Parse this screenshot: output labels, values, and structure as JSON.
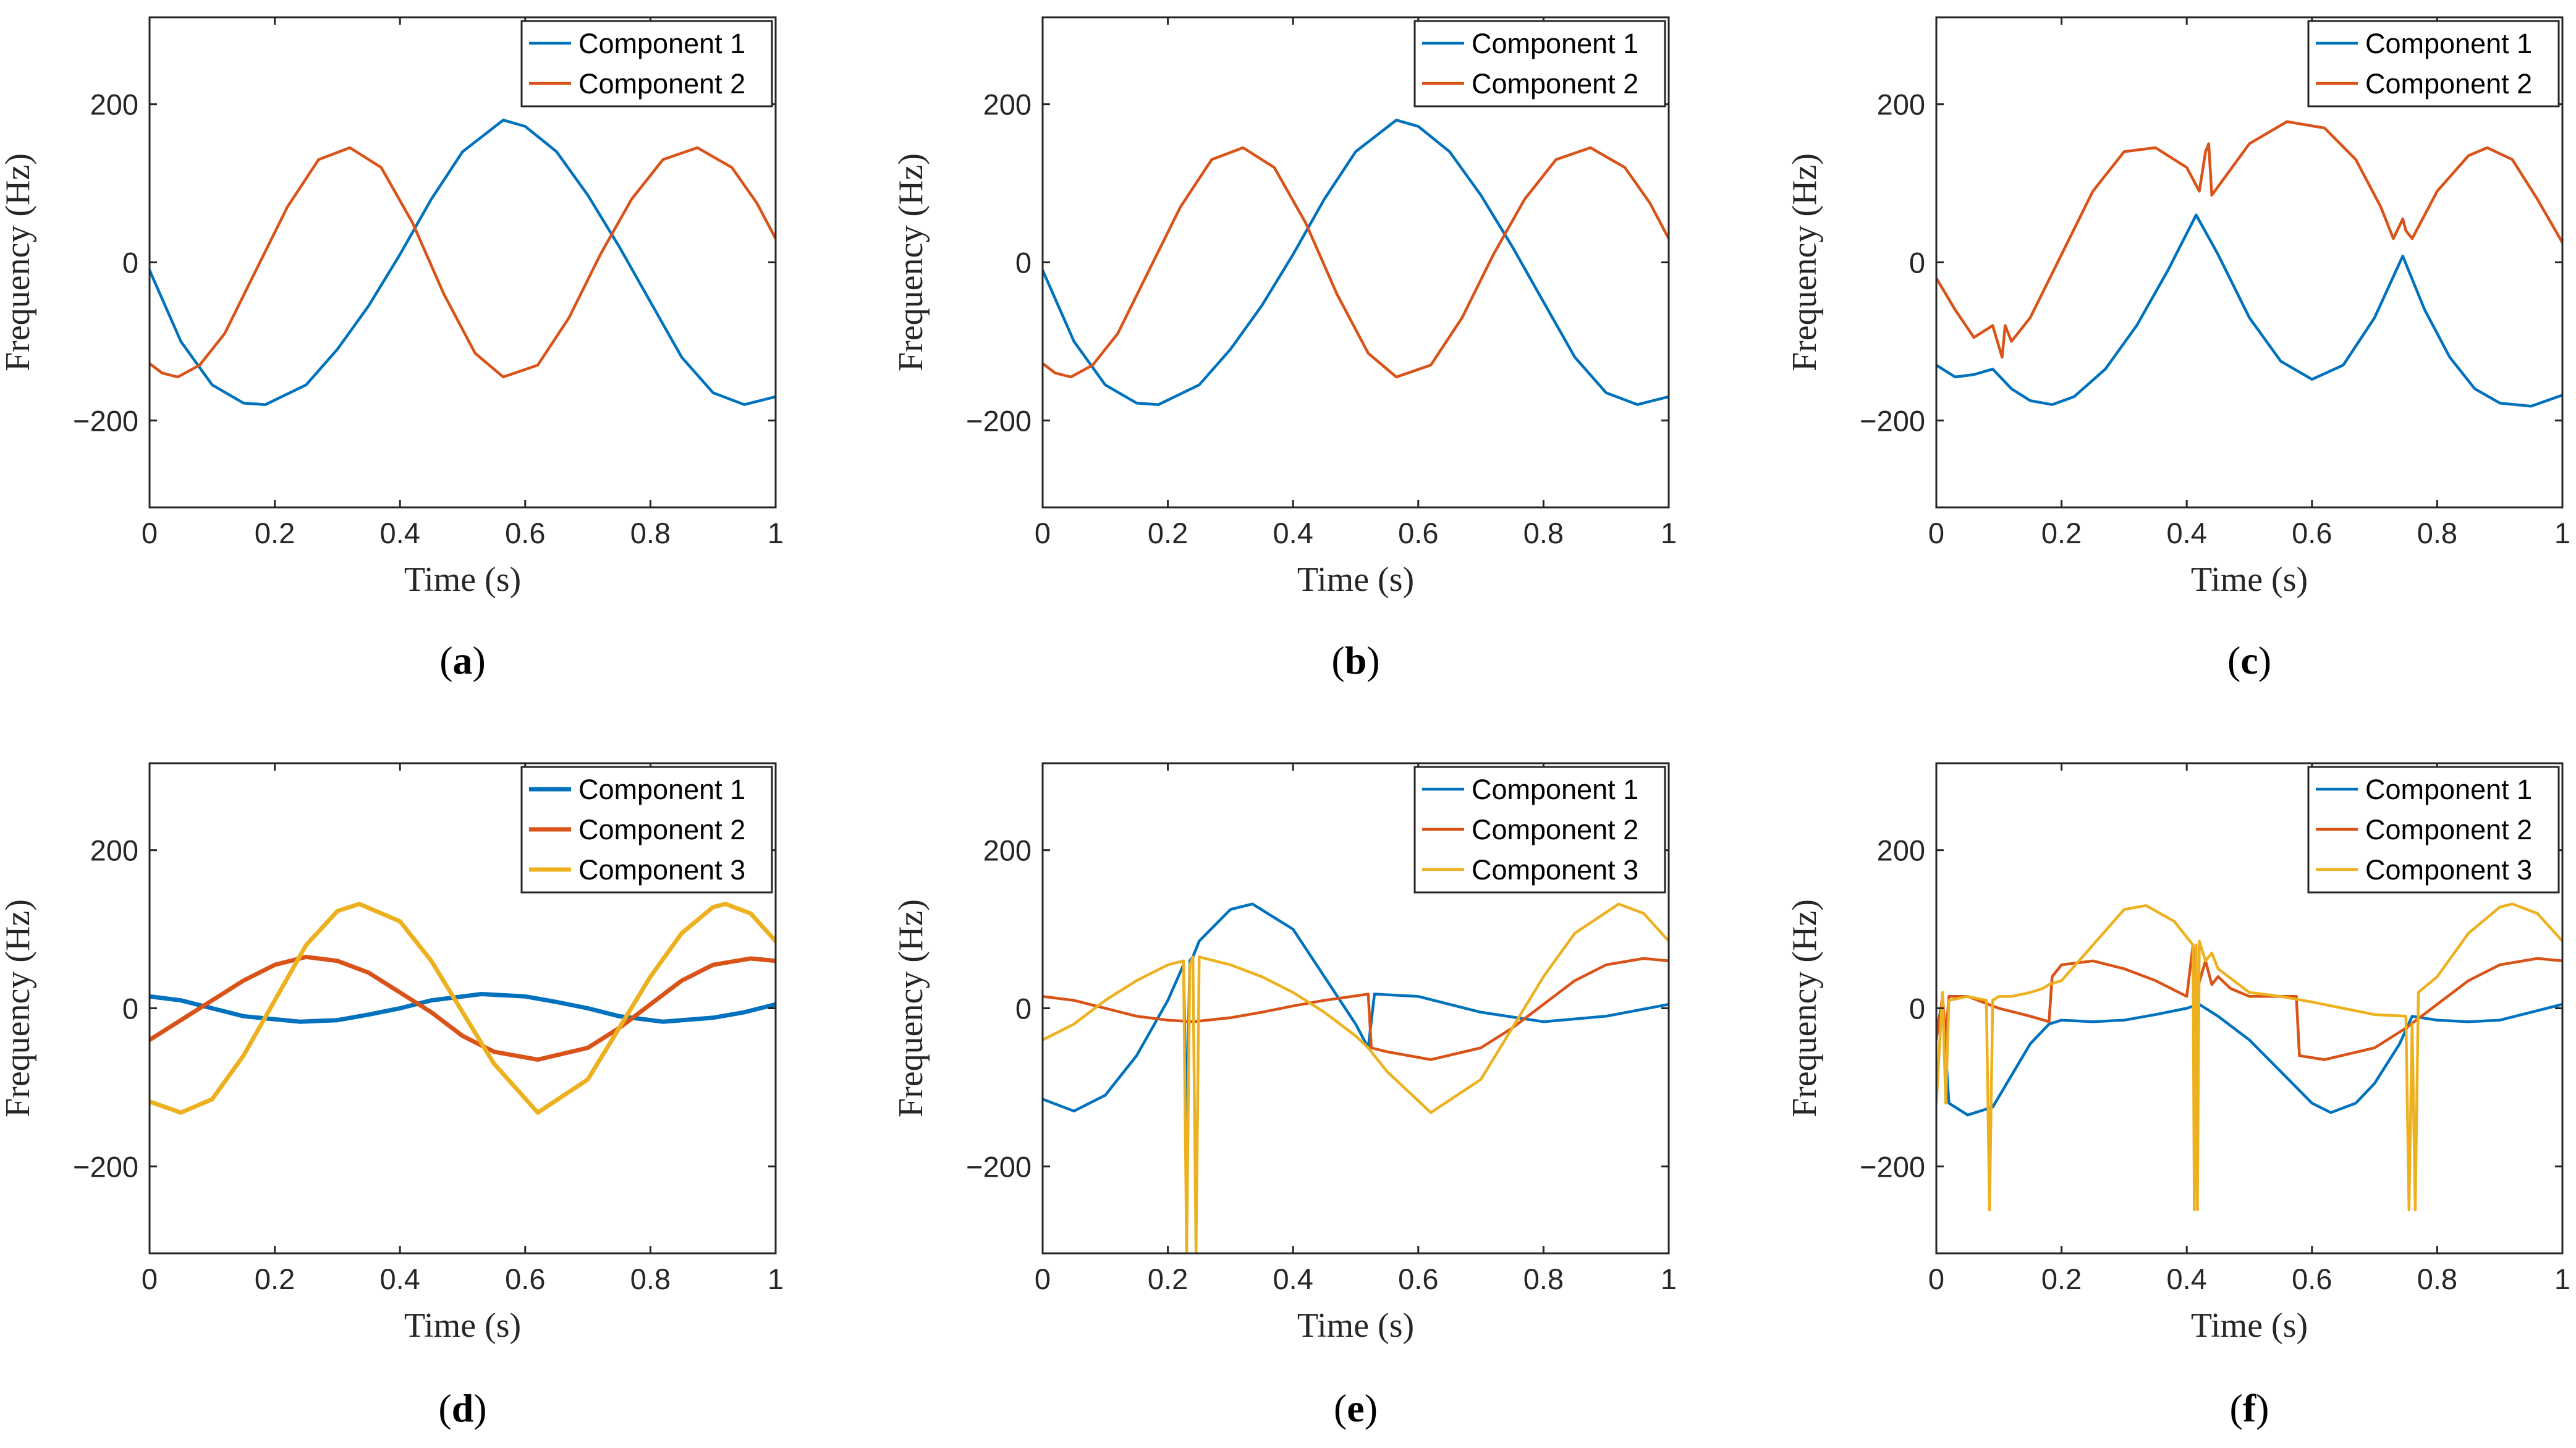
{
  "colors": {
    "c1": "#0072BD",
    "c2": "#D95319",
    "c3": "#EDB120",
    "axis": "#262626"
  },
  "chart_data": [
    {
      "type": "line",
      "caption": "a",
      "xlabel": "Time (s)",
      "ylabel": "Frequency (Hz)",
      "xlim": [
        0,
        1
      ],
      "ylim": [
        -310,
        310
      ],
      "xticks": [
        0,
        0.2,
        0.4,
        0.6,
        0.8,
        1
      ],
      "xtick_labels": [
        "0",
        "0.2",
        "0.4",
        "0.6",
        "0.8",
        "1"
      ],
      "yticks": [
        -200,
        0,
        200
      ],
      "ytick_labels": [
        "−200",
        "0",
        "200"
      ],
      "legend_position": "top-right",
      "series": [
        {
          "name": "Component 1",
          "color": "#0072BD",
          "x": [
            0,
            0.05,
            0.1,
            0.15,
            0.185,
            0.25,
            0.3,
            0.35,
            0.4,
            0.45,
            0.5,
            0.565,
            0.6,
            0.65,
            0.7,
            0.75,
            0.8,
            0.85,
            0.9,
            0.95,
            1
          ],
          "y": [
            -10,
            -100,
            -155,
            -178,
            -180,
            -155,
            -110,
            -55,
            10,
            80,
            140,
            180,
            172,
            140,
            85,
            20,
            -50,
            -120,
            -165,
            -180,
            -170
          ]
        },
        {
          "name": "Component 2",
          "color": "#D95319",
          "x": [
            0,
            0.02,
            0.045,
            0.08,
            0.12,
            0.17,
            0.22,
            0.27,
            0.32,
            0.37,
            0.42,
            0.47,
            0.52,
            0.565,
            0.62,
            0.67,
            0.72,
            0.77,
            0.82,
            0.875,
            0.93,
            0.97,
            1
          ],
          "y": [
            -128,
            -140,
            -145,
            -130,
            -90,
            -10,
            70,
            130,
            145,
            120,
            50,
            -40,
            -115,
            -145,
            -130,
            -70,
            10,
            80,
            130,
            145,
            120,
            75,
            30
          ]
        }
      ]
    },
    {
      "type": "line",
      "caption": "b",
      "xlabel": "Time (s)",
      "ylabel": "Frequency (Hz)",
      "xlim": [
        0,
        1
      ],
      "ylim": [
        -310,
        310
      ],
      "xticks": [
        0,
        0.2,
        0.4,
        0.6,
        0.8,
        1
      ],
      "xtick_labels": [
        "0",
        "0.2",
        "0.4",
        "0.6",
        "0.8",
        "1"
      ],
      "yticks": [
        -200,
        0,
        200
      ],
      "ytick_labels": [
        "−200",
        "0",
        "200"
      ],
      "legend_position": "top-right",
      "series": [
        {
          "name": "Component 1",
          "color": "#0072BD",
          "x": [
            0,
            0.05,
            0.1,
            0.15,
            0.185,
            0.25,
            0.3,
            0.35,
            0.4,
            0.45,
            0.5,
            0.565,
            0.6,
            0.65,
            0.7,
            0.75,
            0.8,
            0.85,
            0.9,
            0.95,
            1
          ],
          "y": [
            -10,
            -100,
            -155,
            -178,
            -180,
            -155,
            -110,
            -55,
            10,
            80,
            140,
            180,
            172,
            140,
            85,
            20,
            -50,
            -120,
            -165,
            -180,
            -170
          ]
        },
        {
          "name": "Component 2",
          "color": "#D95319",
          "x": [
            0,
            0.02,
            0.045,
            0.08,
            0.12,
            0.17,
            0.22,
            0.27,
            0.32,
            0.37,
            0.42,
            0.47,
            0.52,
            0.565,
            0.62,
            0.67,
            0.72,
            0.77,
            0.82,
            0.875,
            0.93,
            0.97,
            1
          ],
          "y": [
            -128,
            -140,
            -145,
            -130,
            -90,
            -10,
            70,
            130,
            145,
            120,
            50,
            -40,
            -115,
            -145,
            -130,
            -70,
            10,
            80,
            130,
            145,
            120,
            75,
            30
          ]
        }
      ]
    },
    {
      "type": "line",
      "caption": "c",
      "xlabel": "Time (s)",
      "ylabel": "Frequency (Hz)",
      "xlim": [
        0,
        1
      ],
      "ylim": [
        -310,
        310
      ],
      "xticks": [
        0,
        0.2,
        0.4,
        0.6,
        0.8,
        1
      ],
      "xtick_labels": [
        "0",
        "0.2",
        "0.4",
        "0.6",
        "0.8",
        "1"
      ],
      "yticks": [
        -200,
        0,
        200
      ],
      "ytick_labels": [
        "−200",
        "0",
        "200"
      ],
      "legend_position": "top-right",
      "series": [
        {
          "name": "Component 1",
          "color": "#0072BD",
          "x": [
            0,
            0.03,
            0.06,
            0.09,
            0.12,
            0.15,
            0.185,
            0.22,
            0.27,
            0.32,
            0.37,
            0.415,
            0.45,
            0.5,
            0.55,
            0.6,
            0.65,
            0.7,
            0.745,
            0.78,
            0.82,
            0.86,
            0.9,
            0.95,
            1
          ],
          "y": [
            -130,
            -145,
            -142,
            -135,
            -160,
            -175,
            -180,
            -170,
            -135,
            -80,
            -10,
            60,
            10,
            -70,
            -125,
            -148,
            -130,
            -70,
            8,
            -60,
            -120,
            -160,
            -178,
            -182,
            -168
          ]
        },
        {
          "name": "Component 2",
          "color": "#D95319",
          "x": [
            0,
            0.03,
            0.06,
            0.09,
            0.105,
            0.11,
            0.12,
            0.15,
            0.2,
            0.25,
            0.3,
            0.35,
            0.4,
            0.42,
            0.43,
            0.435,
            0.44,
            0.5,
            0.56,
            0.62,
            0.67,
            0.71,
            0.73,
            0.745,
            0.75,
            0.76,
            0.8,
            0.85,
            0.88,
            0.92,
            0.96,
            1
          ],
          "y": [
            -20,
            -60,
            -95,
            -80,
            -120,
            -80,
            -100,
            -70,
            10,
            90,
            140,
            145,
            120,
            90,
            140,
            150,
            85,
            150,
            178,
            170,
            130,
            70,
            30,
            55,
            40,
            30,
            90,
            135,
            145,
            130,
            80,
            25
          ]
        }
      ]
    },
    {
      "type": "line",
      "caption": "d",
      "xlabel": "Time (s)",
      "ylabel": "Frequency (Hz)",
      "xlim": [
        0,
        1
      ],
      "ylim": [
        -310,
        310
      ],
      "xticks": [
        0,
        0.2,
        0.4,
        0.6,
        0.8,
        1
      ],
      "xtick_labels": [
        "0",
        "0.2",
        "0.4",
        "0.6",
        "0.8",
        "1"
      ],
      "yticks": [
        -200,
        0,
        200
      ],
      "ytick_labels": [
        "−200",
        "0",
        "200"
      ],
      "legend_position": "top-right",
      "series": [
        {
          "name": "Component 1",
          "color": "#0072BD",
          "x": [
            0,
            0.05,
            0.1,
            0.15,
            0.24,
            0.3,
            0.35,
            0.4,
            0.45,
            0.53,
            0.6,
            0.65,
            0.7,
            0.75,
            0.82,
            0.9,
            0.95,
            1
          ],
          "y": [
            15,
            10,
            0,
            -10,
            -17,
            -15,
            -8,
            0,
            10,
            18,
            15,
            8,
            0,
            -10,
            -17,
            -12,
            -5,
            5
          ]
        },
        {
          "name": "Component 2",
          "color": "#D95319",
          "x": [
            0,
            0.05,
            0.1,
            0.15,
            0.2,
            0.25,
            0.3,
            0.35,
            0.4,
            0.45,
            0.5,
            0.55,
            0.62,
            0.7,
            0.75,
            0.8,
            0.85,
            0.9,
            0.96,
            1
          ],
          "y": [
            -40,
            -15,
            10,
            35,
            55,
            65,
            60,
            45,
            20,
            -5,
            -35,
            -55,
            -65,
            -50,
            -25,
            5,
            35,
            55,
            63,
            60
          ]
        },
        {
          "name": "Component 3",
          "color": "#EDB120",
          "x": [
            0,
            0.05,
            0.1,
            0.15,
            0.2,
            0.25,
            0.3,
            0.335,
            0.4,
            0.45,
            0.5,
            0.55,
            0.62,
            0.7,
            0.75,
            0.8,
            0.85,
            0.9,
            0.92,
            0.96,
            1
          ],
          "y": [
            -118,
            -132,
            -115,
            -60,
            10,
            80,
            123,
            132,
            110,
            60,
            -5,
            -70,
            -132,
            -90,
            -25,
            40,
            95,
            128,
            132,
            120,
            85
          ]
        }
      ]
    },
    {
      "type": "line",
      "caption": "e",
      "xlabel": "Time (s)",
      "ylabel": "Frequency (Hz)",
      "xlim": [
        0,
        1
      ],
      "ylim": [
        -310,
        310
      ],
      "xticks": [
        0,
        0.2,
        0.4,
        0.6,
        0.8,
        1
      ],
      "xtick_labels": [
        "0",
        "0.2",
        "0.4",
        "0.6",
        "0.8",
        "1"
      ],
      "yticks": [
        -200,
        0,
        200
      ],
      "ytick_labels": [
        "−200",
        "0",
        "200"
      ],
      "legend_position": "top-right",
      "series": [
        {
          "name": "Component 1",
          "color": "#0072BD",
          "x": [
            0,
            0.05,
            0.1,
            0.15,
            0.2,
            0.225,
            0.23,
            0.235,
            0.24,
            0.25,
            0.3,
            0.335,
            0.4,
            0.45,
            0.5,
            0.52,
            0.53,
            0.6,
            0.7,
            0.8,
            0.9,
            1
          ],
          "y": [
            -115,
            -130,
            -110,
            -60,
            10,
            55,
            -150,
            60,
            65,
            85,
            125,
            132,
            100,
            40,
            -20,
            -50,
            18,
            15,
            -5,
            -17,
            -10,
            5
          ]
        },
        {
          "name": "Component 2",
          "color": "#D95319",
          "x": [
            0,
            0.05,
            0.1,
            0.15,
            0.2,
            0.24,
            0.3,
            0.35,
            0.4,
            0.45,
            0.52,
            0.525,
            0.55,
            0.62,
            0.7,
            0.75,
            0.8,
            0.85,
            0.9,
            0.96,
            1
          ],
          "y": [
            15,
            10,
            0,
            -10,
            -15,
            -17,
            -12,
            -5,
            3,
            10,
            18,
            -50,
            -55,
            -65,
            -50,
            -25,
            5,
            35,
            55,
            63,
            60
          ]
        },
        {
          "name": "Component 3",
          "color": "#EDB120",
          "x": [
            0,
            0.05,
            0.1,
            0.15,
            0.2,
            0.225,
            0.23,
            0.235,
            0.24,
            0.245,
            0.25,
            0.3,
            0.35,
            0.4,
            0.45,
            0.5,
            0.52,
            0.55,
            0.62,
            0.7,
            0.75,
            0.8,
            0.85,
            0.92,
            0.96,
            1
          ],
          "y": [
            -40,
            -20,
            10,
            35,
            55,
            60,
            -310,
            55,
            65,
            -310,
            65,
            55,
            40,
            20,
            -5,
            -35,
            -50,
            -80,
            -132,
            -90,
            -25,
            40,
            95,
            132,
            120,
            85
          ]
        }
      ]
    },
    {
      "type": "line",
      "caption": "f",
      "xlabel": "Time (s)",
      "ylabel": "Frequency (Hz)",
      "xlim": [
        0,
        1
      ],
      "ylim": [
        -310,
        310
      ],
      "xticks": [
        0,
        0.2,
        0.4,
        0.6,
        0.8,
        1
      ],
      "xtick_labels": [
        "0",
        "0.2",
        "0.4",
        "0.6",
        "0.8",
        "1"
      ],
      "yticks": [
        -200,
        0,
        200
      ],
      "ytick_labels": [
        "−200",
        "0",
        "200"
      ],
      "legend_position": "top-right",
      "series": [
        {
          "name": "Component 1",
          "color": "#0072BD",
          "x": [
            0,
            0.01,
            0.02,
            0.05,
            0.09,
            0.12,
            0.15,
            0.18,
            0.2,
            0.25,
            0.3,
            0.35,
            0.4,
            0.42,
            0.45,
            0.5,
            0.55,
            0.6,
            0.63,
            0.67,
            0.7,
            0.74,
            0.76,
            0.8,
            0.85,
            0.9,
            0.95,
            1
          ],
          "y": [
            -30,
            10,
            -120,
            -135,
            -125,
            -85,
            -45,
            -20,
            -15,
            -17,
            -15,
            -8,
            0,
            5,
            -10,
            -40,
            -80,
            -120,
            -132,
            -120,
            -95,
            -45,
            -10,
            -15,
            -17,
            -15,
            -5,
            5
          ]
        },
        {
          "name": "Component 2",
          "color": "#D95319",
          "x": [
            0,
            0.01,
            0.015,
            0.02,
            0.05,
            0.1,
            0.15,
            0.18,
            0.185,
            0.2,
            0.25,
            0.3,
            0.35,
            0.4,
            0.41,
            0.415,
            0.43,
            0.44,
            0.45,
            0.47,
            0.5,
            0.55,
            0.575,
            0.58,
            0.62,
            0.7,
            0.75,
            0.8,
            0.85,
            0.9,
            0.96,
            1
          ],
          "y": [
            -40,
            15,
            -40,
            15,
            15,
            0,
            -10,
            -17,
            40,
            55,
            60,
            50,
            35,
            15,
            80,
            20,
            60,
            30,
            40,
            25,
            15,
            15,
            15,
            -60,
            -65,
            -50,
            -25,
            5,
            35,
            55,
            63,
            60
          ]
        },
        {
          "name": "Component 3",
          "color": "#EDB120",
          "x": [
            0,
            0.01,
            0.015,
            0.02,
            0.05,
            0.08,
            0.085,
            0.09,
            0.1,
            0.12,
            0.15,
            0.17,
            0.18,
            0.2,
            0.25,
            0.3,
            0.335,
            0.38,
            0.41,
            0.412,
            0.415,
            0.417,
            0.42,
            0.43,
            0.44,
            0.45,
            0.5,
            0.55,
            0.6,
            0.65,
            0.7,
            0.75,
            0.755,
            0.76,
            0.765,
            0.77,
            0.8,
            0.85,
            0.9,
            0.92,
            0.96,
            1
          ],
          "y": [
            -120,
            20,
            -120,
            10,
            15,
            10,
            -255,
            10,
            15,
            15,
            20,
            25,
            30,
            35,
            80,
            125,
            130,
            110,
            80,
            -255,
            80,
            -255,
            85,
            60,
            70,
            50,
            20,
            15,
            8,
            0,
            -8,
            -10,
            -255,
            -20,
            -255,
            20,
            40,
            95,
            128,
            132,
            120,
            85
          ]
        }
      ]
    }
  ]
}
